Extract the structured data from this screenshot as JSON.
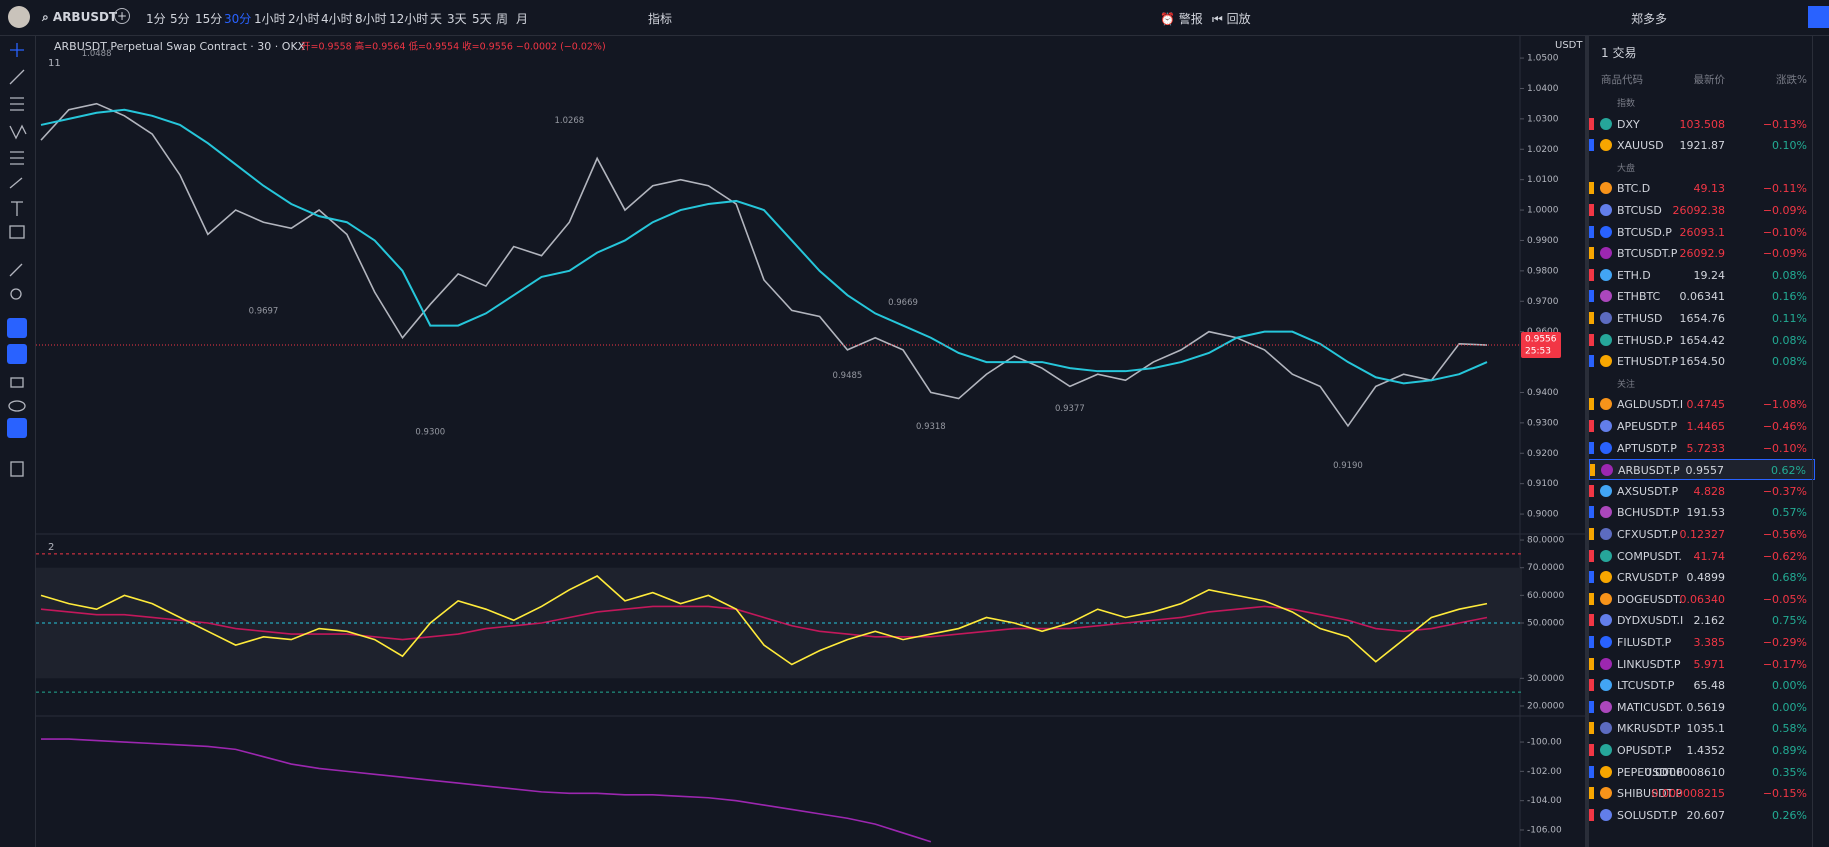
{
  "toolbar": {
    "symbol": "ARBUSDT",
    "intervals": [
      "1分",
      "5分",
      "15分",
      "30分",
      "1小时",
      "2小时",
      "4小时",
      "8小时",
      "12小时",
      "天",
      "3天",
      "5天",
      "周",
      "月"
    ],
    "active_interval": 3,
    "indicators": "指标",
    "alert": "警报",
    "replay": "回放",
    "user": "郑多多"
  },
  "legend": {
    "title": "ARBUSDT Perpetual Swap Contract · 30 · OKX",
    "ohlc": "开=0.9558 高=0.9564 低=0.9554 收=0.9556 −0.0002 (−0.02%)",
    "pane1": "11",
    "pane2": "2",
    "currency": "USDT"
  },
  "chart_data": [
    {
      "type": "line",
      "ylim": [
        0.8941,
        1.0566
      ],
      "yticks": [
        {
          "value": 1.05,
          "label": "1.0500"
        },
        {
          "value": 1.04,
          "label": "1.0400"
        },
        {
          "value": 1.03,
          "label": "1.0300"
        },
        {
          "value": 1.02,
          "label": "1.0200"
        },
        {
          "value": 1.01,
          "label": "1.0100"
        },
        {
          "value": 1.0,
          "label": "1.0000"
        },
        {
          "value": 0.99,
          "label": "0.9900"
        },
        {
          "value": 0.98,
          "label": "0.9800"
        },
        {
          "value": 0.97,
          "label": "0.9700"
        },
        {
          "value": 0.96,
          "label": "0.9600"
        },
        {
          "value": 0.94,
          "label": "0.9400"
        },
        {
          "value": 0.93,
          "label": "0.9300"
        },
        {
          "value": 0.92,
          "label": "0.9200"
        },
        {
          "value": 0.91,
          "label": "0.9100"
        },
        {
          "value": 0.9,
          "label": "0.9000"
        }
      ],
      "series": [
        {
          "color": "#b2b5be",
          "values": [
            1.023,
            1.033,
            1.035,
            1.031,
            1.025,
            1.0115,
            0.992,
            1.0,
            0.996,
            0.994,
            1.0,
            0.992,
            0.973,
            0.958,
            0.969,
            0.979,
            0.975,
            0.988,
            0.985,
            0.996,
            1.017,
            1.0,
            1.008,
            1.01,
            1.008,
            1.002,
            0.977,
            0.967,
            0.965,
            0.954,
            0.958,
            0.954,
            0.94,
            0.938,
            0.946,
            0.952,
            0.948,
            0.942,
            0.946,
            0.944,
            0.95,
            0.954,
            0.96,
            0.958,
            0.954,
            0.946,
            0.942,
            0.929,
            0.942,
            0.946,
            0.944,
            0.956,
            0.9556
          ]
        },
        {
          "color": "#26c6da",
          "values": [
            1.028,
            1.03,
            1.032,
            1.033,
            1.031,
            1.028,
            1.022,
            1.015,
            1.008,
            1.002,
            0.998,
            0.996,
            0.99,
            0.98,
            0.962,
            0.962,
            0.966,
            0.972,
            0.978,
            0.98,
            0.986,
            0.99,
            0.996,
            1.0,
            1.002,
            1.003,
            1.0,
            0.99,
            0.98,
            0.972,
            0.966,
            0.962,
            0.958,
            0.953,
            0.95,
            0.95,
            0.95,
            0.948,
            0.947,
            0.947,
            0.948,
            0.95,
            0.953,
            0.958,
            0.96,
            0.96,
            0.956,
            0.95,
            0.945,
            0.943,
            0.944,
            0.946,
            0.95
          ]
        }
      ],
      "annotations": [
        {
          "x": 2,
          "value": 1.0488,
          "label": "1.0488"
        },
        {
          "x": 19,
          "value": 1.0268,
          "label": "1.0268"
        },
        {
          "x": 8,
          "value": 0.9697,
          "label": "0.9697"
        },
        {
          "x": 14,
          "value": 0.93,
          "label": "0.9300"
        },
        {
          "x": 29,
          "value": 0.9485,
          "label": "0.9485"
        },
        {
          "x": 31,
          "value": 0.9669,
          "label": "0.9669"
        },
        {
          "x": 32,
          "value": 0.9318,
          "label": "0.9318"
        },
        {
          "x": 37,
          "value": 0.9377,
          "label": "0.9377"
        },
        {
          "x": 47,
          "value": 0.919,
          "label": "0.9190"
        }
      ],
      "last_price": {
        "value": 0.9556,
        "label": "0.9556"
      },
      "countdown": "25:53"
    },
    {
      "type": "line",
      "ylim": [
        17.1,
        81.1
      ],
      "yticks": [
        {
          "value": 80,
          "label": "80.0000"
        },
        {
          "value": 70,
          "label": "70.0000"
        },
        {
          "value": 60,
          "label": "60.0000"
        },
        {
          "value": 50,
          "label": "50.0000"
        },
        {
          "value": 30,
          "label": "30.0000"
        },
        {
          "value": 20,
          "label": "20.0000"
        }
      ],
      "band": [
        30,
        70
      ],
      "levels": [
        {
          "value": 75,
          "color": "#f23645"
        },
        {
          "value": 50,
          "color": "#26c6da"
        },
        {
          "value": 25,
          "color": "#22ab94"
        }
      ],
      "series": [
        {
          "color": "#c2185b",
          "values": [
            55,
            54,
            53,
            53,
            52,
            51,
            50,
            48,
            47,
            46,
            46,
            46,
            45,
            44,
            45,
            46,
            48,
            49,
            50,
            52,
            54,
            55,
            56,
            56,
            56,
            55,
            52,
            49,
            47,
            46,
            45,
            45,
            45,
            46,
            47,
            48,
            48,
            48,
            49,
            50,
            51,
            52,
            54,
            55,
            56,
            55,
            53,
            51,
            48,
            47,
            48,
            50,
            52
          ]
        },
        {
          "color": "#ffeb3b",
          "values": [
            60,
            57,
            55,
            60,
            57,
            52,
            47,
            42,
            45,
            44,
            48,
            47,
            44,
            38,
            50,
            58,
            55,
            51,
            56,
            62,
            67,
            58,
            61,
            57,
            60,
            55,
            42,
            35,
            40,
            44,
            47,
            44,
            46,
            48,
            52,
            50,
            47,
            50,
            55,
            52,
            54,
            57,
            62,
            60,
            58,
            54,
            48,
            45,
            36,
            44,
            52,
            55,
            57
          ]
        }
      ]
    },
    {
      "type": "line",
      "ylim": [
        -107.16,
        -98.36
      ],
      "yticks": [
        {
          "value": -100,
          "label": "-100.00"
        },
        {
          "value": -102,
          "label": "-102.00"
        },
        {
          "value": -104,
          "label": "-104.00"
        },
        {
          "value": -106,
          "label": "-106.00"
        }
      ],
      "series": [
        {
          "color": "#9c27b0",
          "values": [
            -99.8,
            -99.8,
            -99.9,
            -100.0,
            -100.1,
            -100.2,
            -100.3,
            -100.5,
            -101.0,
            -101.5,
            -101.8,
            -102.0,
            -102.2,
            -102.4,
            -102.6,
            -102.8,
            -103.0,
            -103.2,
            -103.4,
            -103.5,
            -103.5,
            -103.6,
            -103.6,
            -103.7,
            -103.8,
            -104.0,
            -104.3,
            -104.6,
            -104.9,
            -105.2,
            -105.6,
            -106.2,
            -106.8,
            null,
            null,
            null,
            null,
            null,
            null,
            null,
            null,
            null,
            null,
            null,
            null,
            null,
            null,
            null,
            null,
            null,
            null,
            null,
            null
          ]
        }
      ]
    }
  ],
  "watchlist": {
    "title": "1 交易",
    "columns": [
      "商品代码",
      "最新价",
      "涨跌%"
    ],
    "selected": "ARBUSDT.P",
    "sections": [
      {
        "name": "指数",
        "rows": [
          {
            "symbol": "DXY",
            "price": "103.508",
            "change": "−0.13%"
          },
          {
            "symbol": "XAUUSD",
            "price": "1921.87",
            "change": "0.10%"
          }
        ]
      },
      {
        "name": "大盘",
        "rows": [
          {
            "symbol": "BTC.D",
            "price": "49.13",
            "change": "−0.11%"
          },
          {
            "symbol": "BTCUSD",
            "price": "26092.38",
            "change": "−0.09%"
          },
          {
            "symbol": "BTCUSD.P",
            "price": "26093.1",
            "change": "−0.10%"
          },
          {
            "symbol": "BTCUSDT.P",
            "price": "26092.9",
            "change": "−0.09%"
          },
          {
            "symbol": "ETH.D",
            "price": "19.24",
            "change": "0.08%"
          },
          {
            "symbol": "ETHBTC",
            "price": "0.06341",
            "change": "0.16%"
          },
          {
            "symbol": "ETHUSD",
            "price": "1654.76",
            "change": "0.11%"
          },
          {
            "symbol": "ETHUSD.P",
            "price": "1654.42",
            "change": "0.08%"
          },
          {
            "symbol": "ETHUSDT.P",
            "price": "1654.50",
            "change": "0.08%"
          }
        ]
      },
      {
        "name": "关注",
        "rows": [
          {
            "symbol": "AGLDUSDT.I",
            "price": "0.4745",
            "change": "−1.08%"
          },
          {
            "symbol": "APEUSDT.P",
            "price": "1.4465",
            "change": "−0.46%"
          },
          {
            "symbol": "APTUSDT.P",
            "price": "5.7233",
            "change": "−0.10%"
          },
          {
            "symbol": "ARBUSDT.P",
            "price": "0.9557",
            "change": "0.62%"
          },
          {
            "symbol": "AXSUSDT.P",
            "price": "4.828",
            "change": "−0.37%"
          },
          {
            "symbol": "BCHUSDT.P",
            "price": "191.53",
            "change": "0.57%"
          },
          {
            "symbol": "CFXUSDT.P",
            "price": "0.12327",
            "change": "−0.56%"
          },
          {
            "symbol": "COMPUSDT.",
            "price": "41.74",
            "change": "−0.62%"
          },
          {
            "symbol": "CRVUSDT.P",
            "price": "0.4899",
            "change": "0.68%"
          },
          {
            "symbol": "DOGEUSDT.",
            "price": "0.06340",
            "change": "−0.05%"
          },
          {
            "symbol": "DYDXUSDT.I",
            "price": "2.162",
            "change": "0.75%"
          },
          {
            "symbol": "FILUSDT.P",
            "price": "3.385",
            "change": "−0.29%"
          },
          {
            "symbol": "LINKUSDT.P",
            "price": "5.971",
            "change": "−0.17%"
          },
          {
            "symbol": "LTCUSDT.P",
            "price": "65.48",
            "change": "0.00%"
          },
          {
            "symbol": "MATICUSDT.",
            "price": "0.5619",
            "change": "0.00%"
          },
          {
            "symbol": "MKRUSDT.P",
            "price": "1035.1",
            "change": "0.58%"
          },
          {
            "symbol": "OPUSDT.P",
            "price": "1.4352",
            "change": "0.89%"
          },
          {
            "symbol": "PEPEUSDT.F",
            "price": "0.0000008610",
            "change": "0.35%"
          },
          {
            "symbol": "SHIBUSDT.P",
            "price": "0.000008215",
            "change": "−0.15%"
          },
          {
            "symbol": "SOLUSDT.P",
            "price": "20.607",
            "change": "0.26%"
          }
        ]
      }
    ]
  }
}
